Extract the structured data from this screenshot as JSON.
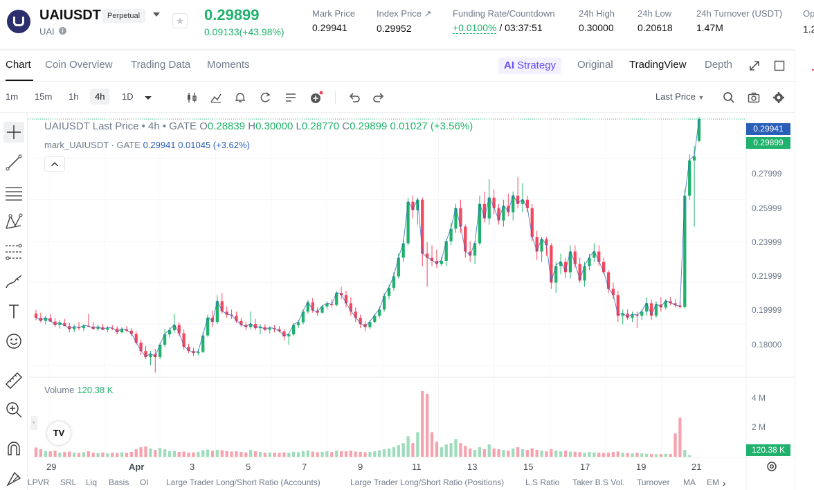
{
  "header": {
    "symbol": "UAIUSDT",
    "contract_type": "Perpetual",
    "base_coin": "UAI",
    "last_price": "0.29899",
    "change": "0.09133(+43.98%)",
    "stats": [
      {
        "label": "Mark Price",
        "value": "0.29941"
      },
      {
        "label": "Index Price ↗",
        "value": "0.29952"
      },
      {
        "label": "Funding Rate/Countdown",
        "value_green": "+0.0100%",
        "value": " / 03:37:51"
      },
      {
        "label": "24h High",
        "value": "0.30000"
      },
      {
        "label": "24h Low",
        "value": "0.20618"
      },
      {
        "label": "24h Turnover (USDT)",
        "value": "1.47M"
      }
    ],
    "cut_label": "Op",
    "cut_value": "1.2"
  },
  "tabs": {
    "left": [
      "Chart",
      "Coin Overview",
      "Trading Data",
      "Moments"
    ],
    "strategy_prefix": "AI",
    "strategy": "Strategy",
    "right": [
      "Original",
      "TradingView",
      "Depth"
    ]
  },
  "toolbar": {
    "timeframes": [
      "1m",
      "15m",
      "1h",
      "4h",
      "1D"
    ],
    "active_timeframe": "4h",
    "price_mode": "Last Price"
  },
  "legend": {
    "title": "UAIUSDT Last Price • 4h • GATE",
    "o_label": "O",
    "o": "0.28839",
    "h_label": "H",
    "h": "0.30000",
    "l_label": "L",
    "l": "0.28770",
    "c_label": "C",
    "c": "0.29899",
    "delta": "0.01027 (+3.56%)",
    "mark_name": "mark_UAIUSDT · GATE",
    "mark_value": "0.29941",
    "mark_delta": "0.01045 (+3.62%)"
  },
  "volume": {
    "label": "Volume",
    "value": "120.38 K",
    "tag": "120.38 K"
  },
  "price_axis": [
    "0.27999",
    "0.25999",
    "0.23999",
    "0.21999",
    "0.19999",
    "0.18000"
  ],
  "volume_axis": [
    "4 M",
    "2 M"
  ],
  "price_tags": {
    "mark": "0.29941",
    "last": "0.29899"
  },
  "time_axis": [
    "29",
    "Apr",
    "3",
    "5",
    "7",
    "9",
    "11",
    "13",
    "15",
    "17",
    "19",
    "21"
  ],
  "indicators": [
    "LPVR",
    "SRL",
    "Liq",
    "Basis",
    "OI",
    "Large Trader Long/Short Ratio (Accounts)",
    "Large Trader Long/Short Ratio (Positions)",
    "L.S Ratio",
    "Taker B.S Vol.",
    "Turnover",
    "MA",
    "EM"
  ],
  "colors": {
    "up": "#20b26c",
    "down": "#f6465d",
    "mark": "#2a5fb8",
    "strategy": "#6c4df0"
  },
  "chart_data": {
    "type": "candlestick",
    "series": [
      {
        "name": "UAIUSDT",
        "ohlc": [
          [
            0.205,
            0.2068,
            0.2018,
            0.203
          ],
          [
            0.203,
            0.2055,
            0.2008,
            0.2015
          ],
          [
            0.2015,
            0.204,
            0.1998,
            0.2028
          ],
          [
            0.2028,
            0.205,
            0.201,
            0.2012
          ],
          [
            0.2012,
            0.203,
            0.1985,
            0.1995
          ],
          [
            0.1995,
            0.2018,
            0.1978,
            0.2005
          ],
          [
            0.2005,
            0.2025,
            0.199,
            0.199
          ],
          [
            0.199,
            0.2005,
            0.196,
            0.1975
          ],
          [
            0.1975,
            0.1998,
            0.196,
            0.1985
          ],
          [
            0.1985,
            0.201,
            0.197,
            0.198
          ],
          [
            0.198,
            0.2,
            0.1965,
            0.199
          ],
          [
            0.199,
            0.2048,
            0.1985,
            0.1988
          ],
          [
            0.1988,
            0.201,
            0.1972,
            0.1976
          ],
          [
            0.1976,
            0.1995,
            0.1968,
            0.1985
          ],
          [
            0.1985,
            0.2,
            0.197,
            0.1972
          ],
          [
            0.1972,
            0.199,
            0.196,
            0.198
          ],
          [
            0.198,
            0.1995,
            0.197,
            0.1978
          ],
          [
            0.1978,
            0.199,
            0.195,
            0.196
          ],
          [
            0.196,
            0.1985,
            0.1955,
            0.1975
          ],
          [
            0.1975,
            0.199,
            0.1962,
            0.1968
          ],
          [
            0.1968,
            0.198,
            0.194,
            0.1952
          ],
          [
            0.1952,
            0.1965,
            0.19,
            0.191
          ],
          [
            0.191,
            0.1925,
            0.185,
            0.187
          ],
          [
            0.187,
            0.1895,
            0.183,
            0.184
          ],
          [
            0.184,
            0.187,
            0.18,
            0.1855
          ],
          [
            0.1855,
            0.188,
            0.1765,
            0.184
          ],
          [
            0.184,
            0.191,
            0.183,
            0.19
          ],
          [
            0.19,
            0.1975,
            0.189,
            0.195
          ],
          [
            0.195,
            0.1985,
            0.1935,
            0.197
          ],
          [
            0.197,
            0.205,
            0.1958,
            0.1995
          ],
          [
            0.1995,
            0.201,
            0.194,
            0.1955
          ],
          [
            0.1955,
            0.1975,
            0.1875,
            0.189
          ],
          [
            0.189,
            0.1905,
            0.186,
            0.187
          ],
          [
            0.187,
            0.1885,
            0.1845,
            0.186
          ],
          [
            0.186,
            0.1878,
            0.1848,
            0.1865
          ],
          [
            0.1865,
            0.196,
            0.186,
            0.1945
          ],
          [
            0.1945,
            0.2045,
            0.1938,
            0.203
          ],
          [
            0.203,
            0.2065,
            0.1985,
            0.201
          ],
          [
            0.201,
            0.214,
            0.2,
            0.211
          ],
          [
            0.211,
            0.215,
            0.205,
            0.206
          ],
          [
            0.206,
            0.2085,
            0.203,
            0.2045
          ],
          [
            0.2045,
            0.207,
            0.2025,
            0.204
          ],
          [
            0.204,
            0.206,
            0.2005,
            0.2015
          ],
          [
            0.2015,
            0.203,
            0.1985,
            0.1995
          ],
          [
            0.1995,
            0.201,
            0.197,
            0.1985
          ],
          [
            0.1985,
            0.206,
            0.1975,
            0.2
          ],
          [
            0.2,
            0.2025,
            0.197,
            0.198
          ],
          [
            0.198,
            0.2,
            0.195,
            0.1985
          ],
          [
            0.1985,
            0.2,
            0.1965,
            0.1972
          ],
          [
            0.1972,
            0.199,
            0.1955,
            0.198
          ],
          [
            0.198,
            0.1995,
            0.196,
            0.1975
          ],
          [
            0.1975,
            0.199,
            0.196,
            0.1965
          ],
          [
            0.1965,
            0.1975,
            0.192,
            0.194
          ],
          [
            0.194,
            0.1958,
            0.19,
            0.195
          ],
          [
            0.195,
            0.2005,
            0.194,
            0.1995
          ],
          [
            0.1995,
            0.202,
            0.198,
            0.2008
          ],
          [
            0.2008,
            0.207,
            0.1998,
            0.206
          ],
          [
            0.206,
            0.2115,
            0.205,
            0.2105
          ],
          [
            0.2105,
            0.2125,
            0.2055,
            0.2065
          ],
          [
            0.2065,
            0.208,
            0.204,
            0.2055
          ],
          [
            0.2055,
            0.209,
            0.205,
            0.2085
          ],
          [
            0.2085,
            0.211,
            0.207,
            0.2098
          ],
          [
            0.2098,
            0.212,
            0.208,
            0.2092
          ],
          [
            0.2092,
            0.216,
            0.2085,
            0.215
          ],
          [
            0.215,
            0.218,
            0.212,
            0.214
          ],
          [
            0.214,
            0.216,
            0.208,
            0.21
          ],
          [
            0.21,
            0.213,
            0.204,
            0.206
          ],
          [
            0.206,
            0.208,
            0.201,
            0.203
          ],
          [
            0.203,
            0.2045,
            0.198,
            0.2
          ],
          [
            0.2,
            0.2015,
            0.1965,
            0.1985
          ],
          [
            0.1985,
            0.202,
            0.1975,
            0.201
          ],
          [
            0.201,
            0.205,
            0.2005,
            0.204
          ],
          [
            0.204,
            0.2085,
            0.203,
            0.207
          ],
          [
            0.207,
            0.215,
            0.206,
            0.2135
          ],
          [
            0.2135,
            0.219,
            0.212,
            0.2175
          ],
          [
            0.2175,
            0.225,
            0.216,
            0.223
          ],
          [
            0.223,
            0.234,
            0.222,
            0.232
          ],
          [
            0.232,
            0.241,
            0.23,
            0.239
          ],
          [
            0.239,
            0.261,
            0.238,
            0.259
          ],
          [
            0.259,
            0.262,
            0.251,
            0.255
          ],
          [
            0.255,
            0.261,
            0.248,
            0.26
          ],
          [
            0.26,
            0.261,
            0.228,
            0.234
          ],
          [
            0.234,
            0.2395,
            0.218,
            0.232
          ],
          [
            0.232,
            0.238,
            0.228,
            0.2305
          ],
          [
            0.2305,
            0.236,
            0.227,
            0.229
          ],
          [
            0.229,
            0.2325,
            0.228,
            0.2305
          ],
          [
            0.2305,
            0.241,
            0.228,
            0.24
          ],
          [
            0.24,
            0.249,
            0.238,
            0.246
          ],
          [
            0.246,
            0.258,
            0.244,
            0.256
          ],
          [
            0.256,
            0.26,
            0.244,
            0.247
          ],
          [
            0.247,
            0.248,
            0.232,
            0.235
          ],
          [
            0.235,
            0.24,
            0.23,
            0.233
          ],
          [
            0.233,
            0.24,
            0.229,
            0.239
          ],
          [
            0.239,
            0.262,
            0.238,
            0.258
          ],
          [
            0.258,
            0.264,
            0.249,
            0.251
          ],
          [
            0.251,
            0.27,
            0.248,
            0.261
          ],
          [
            0.261,
            0.265,
            0.253,
            0.256
          ],
          [
            0.256,
            0.258,
            0.248,
            0.25
          ],
          [
            0.25,
            0.26,
            0.247,
            0.257
          ],
          [
            0.257,
            0.263,
            0.252,
            0.254
          ],
          [
            0.254,
            0.264,
            0.25,
            0.262
          ],
          [
            0.262,
            0.271,
            0.256,
            0.258
          ],
          [
            0.258,
            0.268,
            0.254,
            0.26
          ],
          [
            0.26,
            0.262,
            0.254,
            0.256
          ],
          [
            0.256,
            0.258,
            0.24,
            0.242
          ],
          [
            0.242,
            0.245,
            0.231,
            0.235
          ],
          [
            0.235,
            0.242,
            0.23,
            0.241
          ],
          [
            0.241,
            0.242,
            0.233,
            0.238
          ],
          [
            0.238,
            0.239,
            0.217,
            0.22
          ],
          [
            0.22,
            0.23,
            0.215,
            0.228
          ],
          [
            0.228,
            0.234,
            0.224,
            0.23
          ],
          [
            0.23,
            0.232,
            0.222,
            0.225
          ],
          [
            0.225,
            0.238,
            0.222,
            0.235
          ],
          [
            0.235,
            0.238,
            0.227,
            0.229
          ],
          [
            0.229,
            0.232,
            0.22,
            0.221
          ],
          [
            0.221,
            0.23,
            0.218,
            0.228
          ],
          [
            0.228,
            0.234,
            0.226,
            0.232
          ],
          [
            0.232,
            0.239,
            0.23,
            0.235
          ],
          [
            0.235,
            0.238,
            0.228,
            0.23
          ],
          [
            0.23,
            0.232,
            0.224,
            0.225
          ],
          [
            0.225,
            0.226,
            0.215,
            0.217
          ],
          [
            0.217,
            0.22,
            0.212,
            0.214
          ],
          [
            0.214,
            0.216,
            0.201,
            0.204
          ],
          [
            0.204,
            0.207,
            0.2,
            0.205
          ],
          [
            0.205,
            0.207,
            0.202,
            0.203
          ],
          [
            0.203,
            0.206,
            0.201,
            0.2045
          ],
          [
            0.2045,
            0.206,
            0.198,
            0.204
          ],
          [
            0.204,
            0.207,
            0.202,
            0.206
          ],
          [
            0.206,
            0.213,
            0.204,
            0.21
          ],
          [
            0.21,
            0.212,
            0.202,
            0.204
          ],
          [
            0.204,
            0.211,
            0.203,
            0.2095
          ],
          [
            0.2095,
            0.213,
            0.206,
            0.208
          ],
          [
            0.208,
            0.212,
            0.207,
            0.211
          ],
          [
            0.211,
            0.213,
            0.209,
            0.21
          ],
          [
            0.21,
            0.212,
            0.208,
            0.209
          ],
          [
            0.209,
            0.211,
            0.2075,
            0.2082
          ],
          [
            0.2082,
            0.265,
            0.2075,
            0.262
          ],
          [
            0.262,
            0.282,
            0.26,
            0.279
          ],
          [
            0.279,
            0.286,
            0.247,
            0.281
          ],
          [
            0.2884,
            0.3,
            0.2877,
            0.299
          ]
        ]
      }
    ],
    "volume_values_m": [
      0.68,
      0.55,
      0.42,
      0.4,
      0.45,
      0.3,
      0.35,
      0.38,
      0.3,
      0.28,
      0.33,
      0.4,
      0.3,
      0.28,
      0.31,
      0.25,
      0.3,
      0.28,
      0.32,
      0.29,
      0.35,
      0.55,
      0.7,
      0.75,
      0.6,
      0.5,
      0.65,
      0.55,
      0.4,
      0.42,
      0.35,
      0.38,
      0.3,
      0.32,
      0.36,
      0.48,
      0.52,
      0.45,
      0.5,
      0.48,
      0.42,
      0.38,
      0.4,
      0.35,
      0.32,
      0.5,
      0.4,
      0.35,
      0.3,
      0.32,
      0.3,
      0.28,
      0.32,
      0.3,
      0.36,
      0.33,
      0.42,
      0.46,
      0.38,
      0.33,
      0.36,
      0.4,
      0.35,
      0.45,
      0.42,
      0.4,
      0.45,
      0.38,
      0.36,
      0.33,
      0.35,
      0.4,
      0.48,
      0.55,
      0.6,
      0.7,
      0.85,
      1.0,
      1.5,
      1.0,
      1.8,
      4.8,
      4.6,
      1.8,
      1.1,
      0.7,
      0.9,
      1.0,
      1.3,
      1.0,
      0.8,
      0.6,
      0.5,
      0.7,
      0.55,
      0.9,
      0.6,
      0.55,
      0.5,
      0.45,
      0.6,
      0.7,
      0.55,
      0.5,
      0.62,
      0.5,
      0.45,
      0.4,
      0.55,
      0.45,
      0.4,
      0.45,
      0.38,
      0.36,
      0.34,
      0.3,
      0.35,
      0.32,
      0.3,
      0.28,
      0.3,
      0.35,
      0.38,
      0.3,
      0.28,
      0.25,
      0.3,
      0.25,
      0.22,
      0.2,
      0.18,
      0.2,
      0.22,
      0.2,
      1.7,
      2.85,
      0.5,
      0.12
    ],
    "price_range": [
      0.175,
      0.302
    ],
    "volume_range_m": [
      0,
      5.0
    ]
  }
}
